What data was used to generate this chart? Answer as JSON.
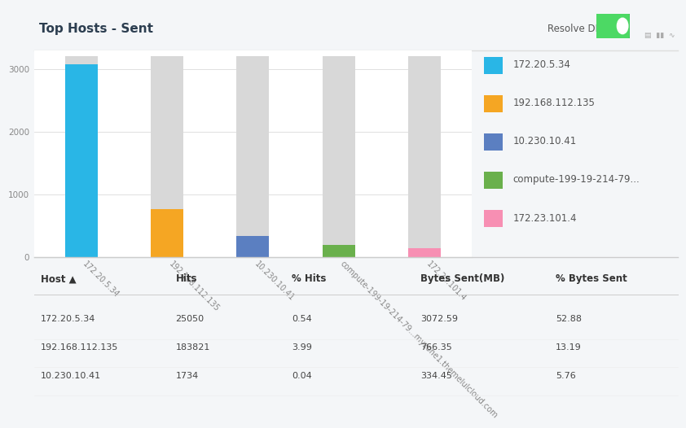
{
  "title": "Top Hosts - Sent",
  "resolve_dns_label": "Resolve DNS",
  "categories": [
    "172.20.5.34",
    "192.168.112.135",
    "10.230.10.41",
    "compute-199-19-214-79...myzone1.themelulcloud.com",
    "172.23.101.4"
  ],
  "bar_total": 3200,
  "bar_values": [
    3072.59,
    766.35,
    334.45,
    200,
    150
  ],
  "bar_colors": [
    "#29b6e6",
    "#f5a623",
    "#5b7fc1",
    "#6ab04c",
    "#f78fb3"
  ],
  "background_color": "#f4f6f8",
  "chart_bg": "#ffffff",
  "grid_color": "#e0e0e0",
  "remaining_color": "#d8d8d8",
  "ylim": [
    0,
    3300
  ],
  "yticks": [
    0,
    1000,
    2000,
    3000
  ],
  "legend_labels": [
    "172.20.5.34",
    "192.168.112.135",
    "10.230.10.41",
    "compute-199-19-214-79...",
    "172.23.101.4"
  ],
  "legend_colors": [
    "#29b6e6",
    "#f5a623",
    "#5b7fc1",
    "#6ab04c",
    "#f78fb3"
  ],
  "table_headers": [
    "Host ▲",
    "Hits",
    "% Hits",
    "Bytes Sent(MB)",
    "% Bytes Sent"
  ],
  "table_data": [
    [
      "172.20.5.34",
      "25050",
      "0.54",
      "3072.59",
      "52.88"
    ],
    [
      "192.168.112.135",
      "183821",
      "3.99",
      "766.35",
      "13.19"
    ],
    [
      "10.230.10.41",
      "1734",
      "0.04",
      "334.45",
      "5.76"
    ]
  ],
  "title_fontsize": 11,
  "tick_fontsize": 7.5,
  "legend_fontsize": 8.5,
  "table_fontsize": 8.5
}
